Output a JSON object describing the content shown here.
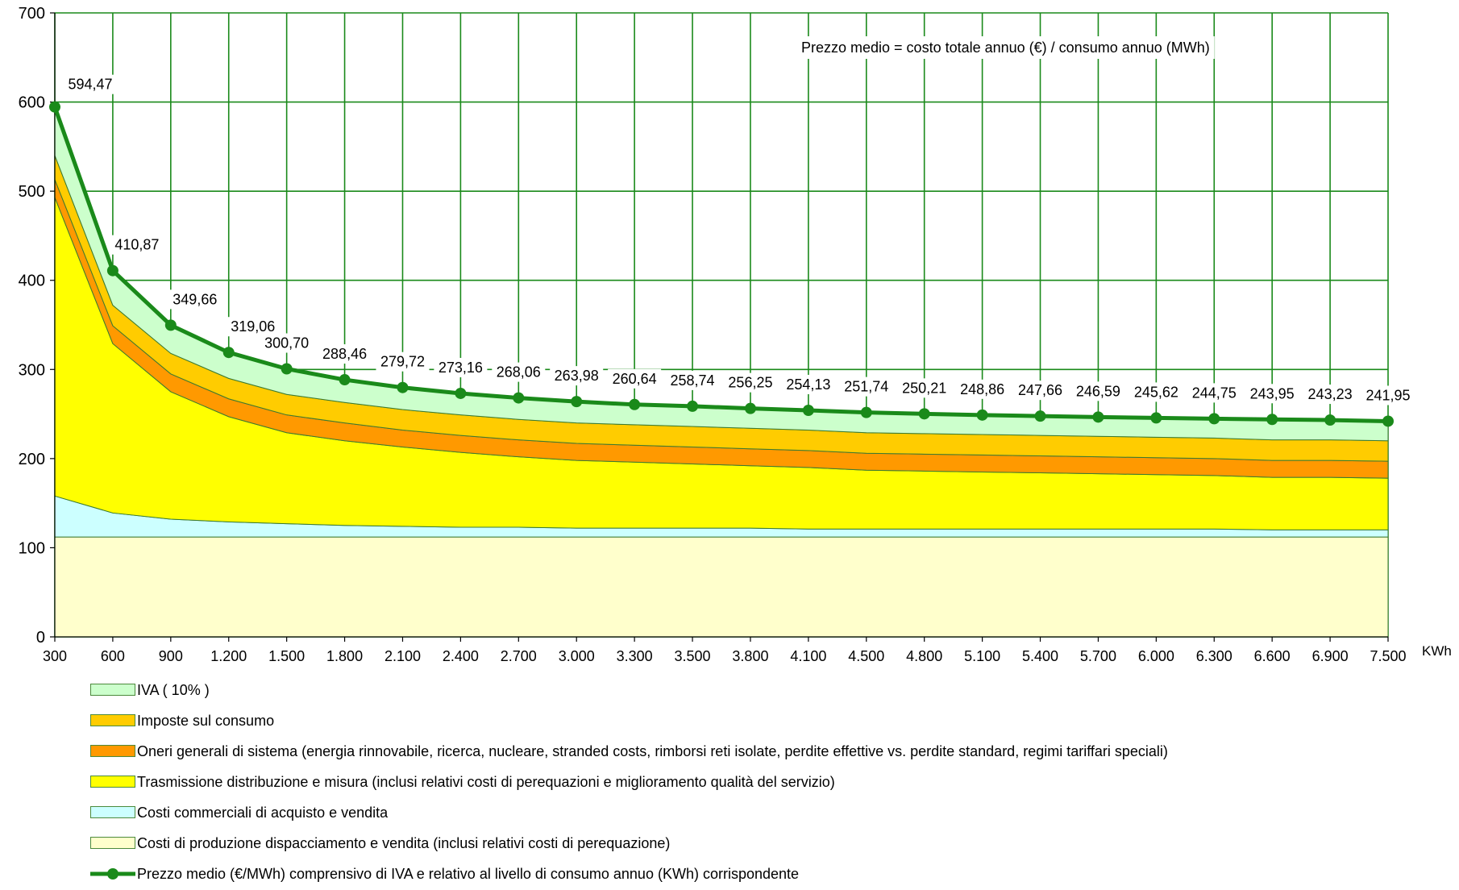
{
  "chart_data": {
    "type": "area",
    "annotation": "Prezzo medio = costo totale annuo (€) / consumo annuo (MWh)",
    "xlabel": "KWh",
    "ylim": [
      0,
      700
    ],
    "yticks": [
      "0",
      "100",
      "200",
      "300",
      "400",
      "500",
      "600",
      "700"
    ],
    "categories": [
      "300",
      "600",
      "900",
      "1.200",
      "1.500",
      "1.800",
      "2.100",
      "2.400",
      "2.700",
      "3.000",
      "3.300",
      "3.500",
      "3.800",
      "4.100",
      "4.500",
      "4.800",
      "5.100",
      "5.400",
      "5.700",
      "6.000",
      "6.300",
      "6.600",
      "6.900",
      "7.500"
    ],
    "stacked_areas": [
      {
        "name": "Costi di produzione dispacciamento e vendita (inclusi relativi costi di perequazione)",
        "color": "#ffffcc",
        "values": [
          112,
          112,
          112,
          112,
          112,
          112,
          112,
          112,
          112,
          112,
          112,
          112,
          112,
          112,
          112,
          112,
          112,
          112,
          112,
          112,
          112,
          112,
          112,
          112
        ]
      },
      {
        "name": "Costi commerciali di acquisto e vendita",
        "color": "#ccffff",
        "values": [
          46,
          27,
          20,
          17,
          15,
          13,
          12,
          11,
          11,
          10,
          10,
          10,
          10,
          9,
          9,
          9,
          9,
          9,
          9,
          9,
          9,
          8,
          8,
          8
        ]
      },
      {
        "name": "Trasmissione distribuzione e misura (inclusi relativi costi di perequazioni e miglioramento qualità del servizio)",
        "color": "#ffff00",
        "values": [
          335,
          190,
          143,
          118,
          102,
          95,
          89,
          84,
          79,
          76,
          74,
          72,
          70,
          69,
          66,
          65,
          64,
          63,
          62,
          61,
          60,
          59,
          59,
          58
        ]
      },
      {
        "name": "Oneri generali di sistema (energia rinnovabile, ricerca, nucleare, stranded costs, rimborsi reti isolate, perdite effettive vs. perdite standard, regimi tariffari speciali)",
        "color": "#ff9900",
        "values": [
          20,
          20,
          20,
          20,
          20,
          20,
          19,
          19,
          19,
          19,
          19,
          19,
          19,
          19,
          19,
          19,
          19,
          19,
          19,
          19,
          19,
          19,
          19,
          19
        ]
      },
      {
        "name": "Imposte sul consumo",
        "color": "#ffcc00",
        "values": [
          27,
          23,
          23,
          23,
          23,
          23,
          23,
          23,
          23,
          23,
          23,
          23,
          23,
          23,
          23,
          23,
          23,
          23,
          23,
          23,
          23,
          23,
          23,
          23
        ]
      },
      {
        "name": "IVA ( 10% )",
        "color": "#ccffcc",
        "values": [
          54,
          38,
          32,
          29,
          28,
          26,
          25,
          25,
          24,
          24,
          24,
          23,
          23,
          23,
          23,
          23,
          23,
          22,
          22,
          22,
          22,
          22,
          22,
          22
        ]
      }
    ],
    "line": {
      "name": "Prezzo medio (€/MWh) comprensivo di IVA e relativo al livello di consumo annuo (KWh) corrispondente",
      "color": "#1a8a1a",
      "values": [
        594.47,
        410.87,
        349.66,
        319.06,
        300.7,
        288.46,
        279.72,
        273.16,
        268.06,
        263.98,
        260.64,
        258.74,
        256.25,
        254.13,
        251.74,
        250.21,
        248.86,
        247.66,
        246.59,
        245.62,
        244.75,
        243.95,
        243.23,
        241.95
      ],
      "labels": [
        "594,47",
        "410,87",
        "349,66",
        "319,06",
        "300,70",
        "288,46",
        "279,72",
        "273,16",
        "268,06",
        "263,98",
        "260,64",
        "258,74",
        "256,25",
        "254,13",
        "251,74",
        "250,21",
        "248,86",
        "247,66",
        "246,59",
        "245,62",
        "244,75",
        "243,95",
        "243,23",
        "241,95"
      ]
    },
    "grid": true,
    "grid_color": "#1a8a1a"
  },
  "legend": {
    "items": [
      {
        "label": "IVA ( 10% )",
        "color": "#ccffcc",
        "kind": "area"
      },
      {
        "label": "Imposte sul consumo",
        "color": "#ffcc00",
        "kind": "area"
      },
      {
        "label": "Oneri generali di sistema (energia rinnovabile, ricerca, nucleare, stranded costs, rimborsi reti isolate, perdite effettive vs. perdite standard, regimi tariffari speciali)",
        "color": "#ff9900",
        "kind": "area"
      },
      {
        "label": "Trasmissione distribuzione e misura (inclusi relativi costi di perequazioni e miglioramento qualità del servizio)",
        "color": "#ffff00",
        "kind": "area"
      },
      {
        "label": "Costi commerciali di acquisto e vendita",
        "color": "#ccffff",
        "kind": "area"
      },
      {
        "label": "Costi di produzione dispacciamento e vendita (inclusi relativi costi di perequazione)",
        "color": "#ffffcc",
        "kind": "area"
      },
      {
        "label": "Prezzo medio (€/MWh) comprensivo di IVA e relativo al livello di consumo annuo (KWh) corrispondente",
        "color": "#1a8a1a",
        "kind": "line"
      }
    ]
  }
}
